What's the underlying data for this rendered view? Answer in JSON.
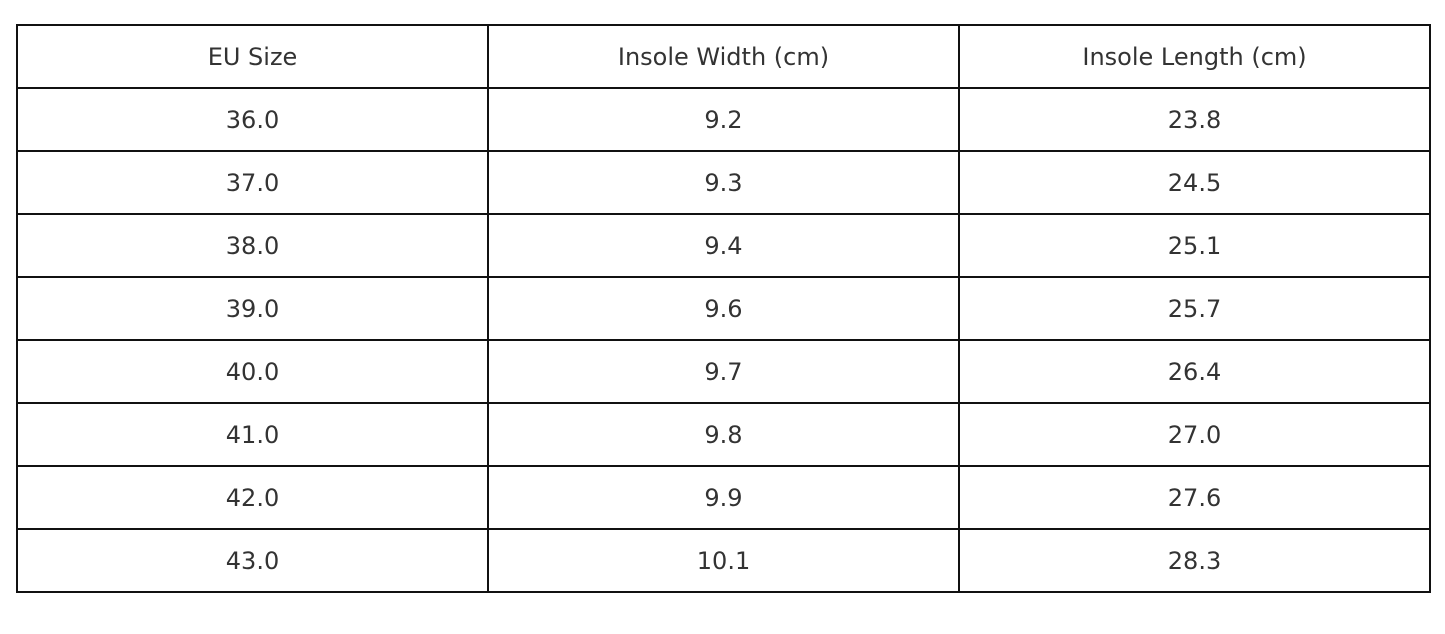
{
  "table": {
    "headers": [
      "EU Size",
      "Insole Width (cm)",
      "Insole Length (cm)"
    ],
    "rows": [
      [
        "36.0",
        "9.2",
        "23.8"
      ],
      [
        "37.0",
        "9.3",
        "24.5"
      ],
      [
        "38.0",
        "9.4",
        "25.1"
      ],
      [
        "39.0",
        "9.6",
        "25.7"
      ],
      [
        "40.0",
        "9.7",
        "26.4"
      ],
      [
        "41.0",
        "9.8",
        "27.0"
      ],
      [
        "42.0",
        "9.9",
        "27.6"
      ],
      [
        "43.0",
        "10.1",
        "28.3"
      ]
    ]
  }
}
